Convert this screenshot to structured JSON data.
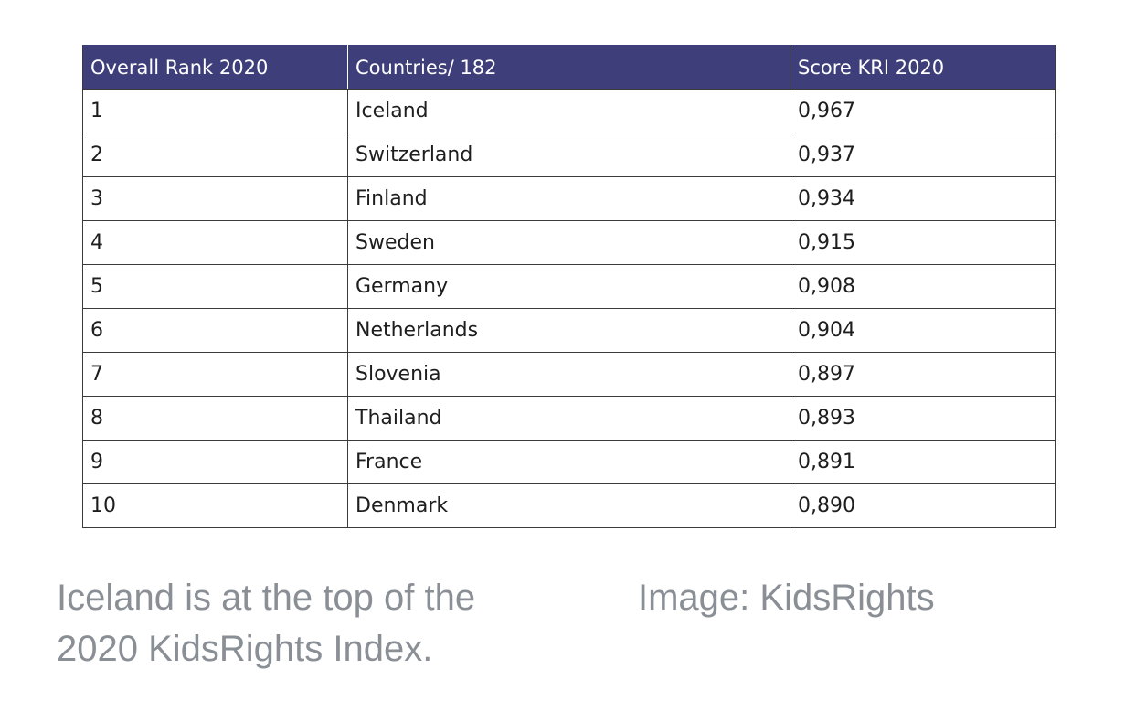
{
  "table": {
    "headers": [
      "Overall Rank 2020",
      "Countries/ 182",
      "Score KRI 2020"
    ],
    "rows": [
      {
        "rank": "1",
        "country": "Iceland",
        "score": "0,967"
      },
      {
        "rank": "2",
        "country": "Switzerland",
        "score": "0,937"
      },
      {
        "rank": "3",
        "country": "Finland",
        "score": "0,934"
      },
      {
        "rank": "4",
        "country": "Sweden",
        "score": "0,915"
      },
      {
        "rank": "5",
        "country": "Germany",
        "score": "0,908"
      },
      {
        "rank": "6",
        "country": "Netherlands",
        "score": "0,904"
      },
      {
        "rank": "7",
        "country": "Slovenia",
        "score": "0,897"
      },
      {
        "rank": "8",
        "country": "Thailand",
        "score": "0,893"
      },
      {
        "rank": "9",
        "country": "France",
        "score": "0,891"
      },
      {
        "rank": "10",
        "country": "Denmark",
        "score": "0,890"
      }
    ],
    "header_color": "#3e3e7a"
  },
  "caption": {
    "text": "Iceland is at the top of the 2020 KidsRights Index.",
    "credit": "Image: KidsRights"
  }
}
